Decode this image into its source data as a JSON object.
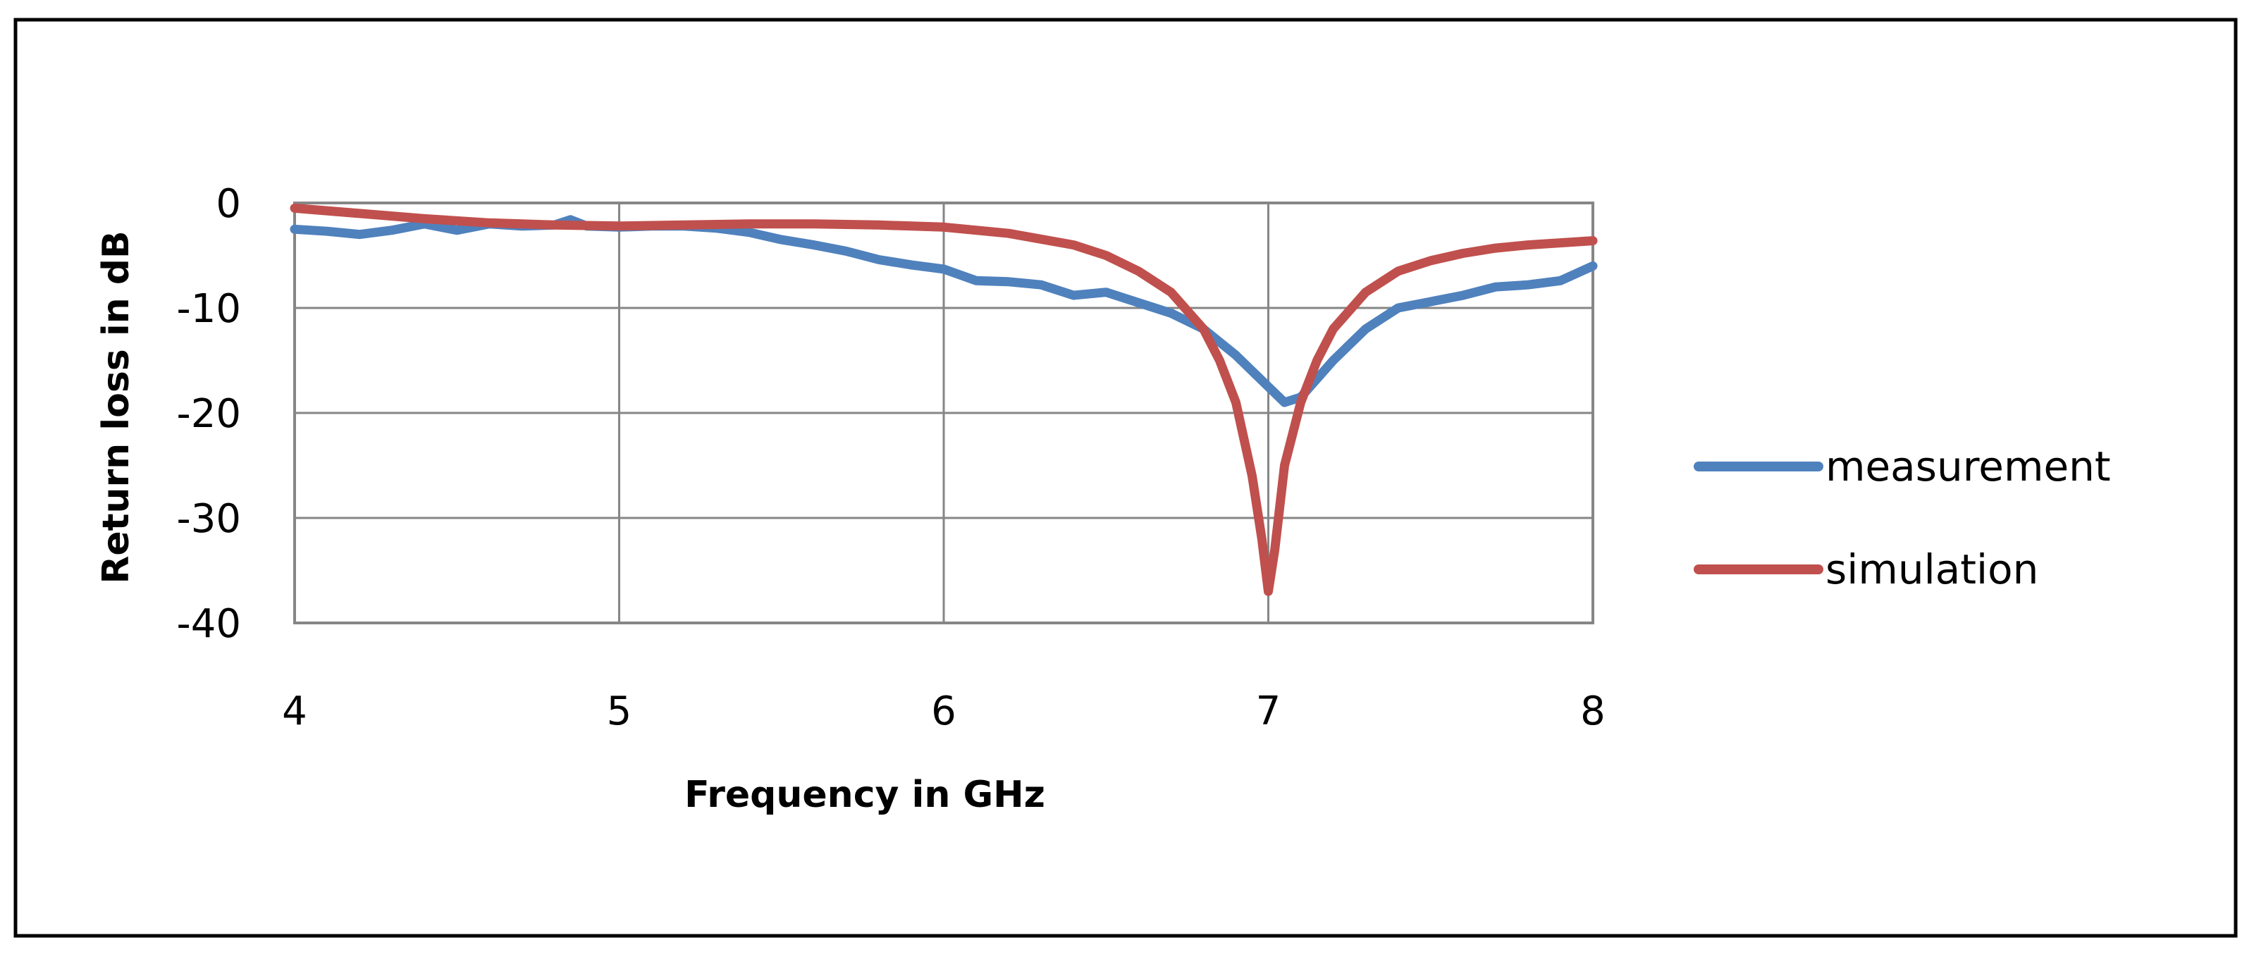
{
  "chart_data": {
    "type": "line",
    "xlabel": "Frequency in GHz",
    "ylabel": "Return loss in dB",
    "xlim": [
      4,
      8
    ],
    "ylim": [
      -40,
      0
    ],
    "xticks": [
      "4",
      "5",
      "6",
      "7",
      "8"
    ],
    "yticks": [
      "0",
      "-10",
      "-20",
      "-30",
      "-40"
    ],
    "grid": true,
    "legend_position": "right",
    "series": [
      {
        "name": "measurement",
        "color": "#4f81bd",
        "x": [
          4.0,
          4.1,
          4.2,
          4.3,
          4.4,
          4.5,
          4.6,
          4.7,
          4.8,
          4.85,
          4.9,
          5.0,
          5.1,
          5.2,
          5.3,
          5.4,
          5.5,
          5.6,
          5.7,
          5.8,
          5.9,
          6.0,
          6.1,
          6.2,
          6.3,
          6.4,
          6.5,
          6.6,
          6.7,
          6.8,
          6.9,
          7.0,
          7.05,
          7.1,
          7.2,
          7.3,
          7.4,
          7.5,
          7.6,
          7.7,
          7.8,
          7.9,
          8.0
        ],
        "y": [
          -2.5,
          -2.7,
          -3.0,
          -2.6,
          -2.0,
          -2.6,
          -2.0,
          -2.2,
          -2.1,
          -1.6,
          -2.2,
          -2.3,
          -2.2,
          -2.2,
          -2.4,
          -2.8,
          -3.5,
          -4.0,
          -4.6,
          -5.4,
          -5.9,
          -6.3,
          -7.4,
          -7.5,
          -7.8,
          -8.8,
          -8.5,
          -9.5,
          -10.5,
          -12.0,
          -14.5,
          -17.5,
          -19.0,
          -18.5,
          -15.0,
          -12.0,
          -10.0,
          -9.4,
          -8.8,
          -8.0,
          -7.8,
          -7.4,
          -6.0
        ]
      },
      {
        "name": "simulation",
        "color": "#c0504d",
        "x": [
          4.0,
          4.2,
          4.4,
          4.6,
          4.8,
          5.0,
          5.2,
          5.4,
          5.6,
          5.8,
          6.0,
          6.2,
          6.4,
          6.5,
          6.6,
          6.7,
          6.8,
          6.85,
          6.9,
          6.95,
          6.98,
          7.0,
          7.02,
          7.05,
          7.1,
          7.15,
          7.2,
          7.3,
          7.4,
          7.5,
          7.6,
          7.7,
          7.8,
          7.9,
          8.0
        ],
        "y": [
          -0.5,
          -1.0,
          -1.5,
          -1.9,
          -2.1,
          -2.2,
          -2.1,
          -2.0,
          -2.0,
          -2.1,
          -2.3,
          -2.9,
          -4.0,
          -5.0,
          -6.5,
          -8.5,
          -12.0,
          -15.0,
          -19.0,
          -26.0,
          -32.0,
          -37.0,
          -33.0,
          -25.0,
          -19.0,
          -15.0,
          -12.0,
          -8.5,
          -6.5,
          -5.5,
          -4.8,
          -4.3,
          -4.0,
          -3.8,
          -3.6
        ]
      }
    ]
  }
}
